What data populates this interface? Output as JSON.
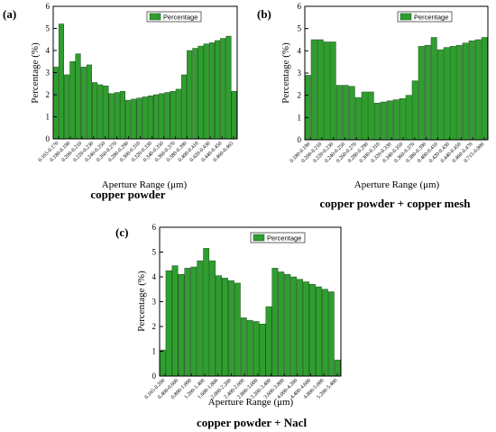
{
  "chart_data": [
    {
      "type": "bar",
      "panel_label": "(a)",
      "caption": "copper powder",
      "ylabel": "Percentage (%)",
      "xlabel": "Aperture Range (μm)",
      "ylim": [
        0,
        6
      ],
      "yticks": [
        0,
        1,
        2,
        3,
        4,
        5,
        6
      ],
      "legend": "Percentage",
      "legend_position": "top-right",
      "bar_color": "#2f9e2f",
      "tick_labels": [
        "0.165-0.170",
        "0.180-0.190",
        "0.200-0.210",
        "0.220-0.230",
        "0.240-0.250",
        "0.260-0.270",
        "0.280-0.290",
        "0.300-0.310",
        "0.320-0.330",
        "0.340-0.350",
        "0.360-0.370",
        "0.380-0.390",
        "0.400-0.410",
        "0.420-0.430",
        "0.440-0.450",
        "0.460-0.465"
      ],
      "series": [
        {
          "values": [
            3.25,
            5.2,
            2.9,
            3.5,
            3.85,
            3.25,
            3.35,
            2.55,
            2.45,
            2.4,
            2.05,
            2.1,
            2.15,
            1.75,
            1.8,
            1.85,
            1.9,
            1.95,
            2.0,
            2.05,
            2.1,
            2.15,
            2.25,
            2.9,
            4.0,
            4.1,
            4.2,
            4.3,
            4.35,
            4.45,
            4.55,
            4.65,
            2.15
          ]
        }
      ]
    },
    {
      "type": "bar",
      "panel_label": "(b)",
      "caption": "copper powder + copper mesh",
      "ylabel": "Percentage (%)",
      "xlabel": "Aperture Range (μm)",
      "ylim": [
        0,
        6
      ],
      "yticks": [
        0,
        1,
        2,
        3,
        4,
        5,
        6
      ],
      "legend": "Percentage",
      "legend_position": "top-right",
      "bar_color": "#2f9e2f",
      "tick_labels": [
        "0.180-0.190",
        "0.200-0.210",
        "0.220-0.230",
        "0.240-0.250",
        "0.260-0.270",
        "0.280-0.290",
        "0.300-0.310",
        "0.320-0.330",
        "0.340-0.350",
        "0.360-0.370",
        "0.380-0.390",
        "0.400-0.410",
        "0.420-0.430",
        "0.440-0.450",
        "0.460-0.470",
        "0.715-0.800"
      ],
      "series": [
        {
          "values": [
            2.9,
            4.5,
            4.5,
            4.4,
            4.4,
            2.45,
            2.45,
            2.4,
            1.9,
            2.15,
            2.15,
            1.65,
            1.7,
            1.75,
            1.8,
            1.85,
            2.0,
            2.65,
            4.2,
            4.25,
            4.6,
            4.05,
            4.15,
            4.2,
            4.25,
            4.35,
            4.45,
            4.5,
            4.6
          ]
        }
      ]
    },
    {
      "type": "bar",
      "panel_label": "(c)",
      "caption": "copper powder + Nacl",
      "ylabel": "Percentage (%)",
      "xlabel": "Aperture Range (μm)",
      "ylim": [
        0,
        6
      ],
      "yticks": [
        0,
        1,
        2,
        3,
        4,
        5,
        6
      ],
      "legend": "Percentage",
      "legend_position": "top-right",
      "bar_color": "#2f9e2f",
      "tick_labels": [
        "0.165-0.200",
        "0.400-0.600",
        "0.800-1.000",
        "1.200-1.400",
        "1.600-1.800",
        "2.000-2.200",
        "2.400-2.600",
        "2.800-3.000",
        "3.200-3.400",
        "3.600-3.800",
        "4.000-4.200",
        "4.400-4.600",
        "4.800-5.000",
        "5.200-5.400"
      ],
      "series": [
        {
          "values": [
            1.05,
            4.25,
            4.45,
            4.1,
            4.35,
            4.4,
            4.65,
            5.15,
            4.65,
            4.05,
            3.95,
            3.85,
            3.75,
            2.35,
            2.25,
            2.2,
            2.1,
            2.8,
            4.35,
            4.2,
            4.1,
            4.0,
            3.9,
            3.8,
            3.7,
            3.6,
            3.5,
            3.4,
            0.65
          ]
        }
      ]
    }
  ]
}
